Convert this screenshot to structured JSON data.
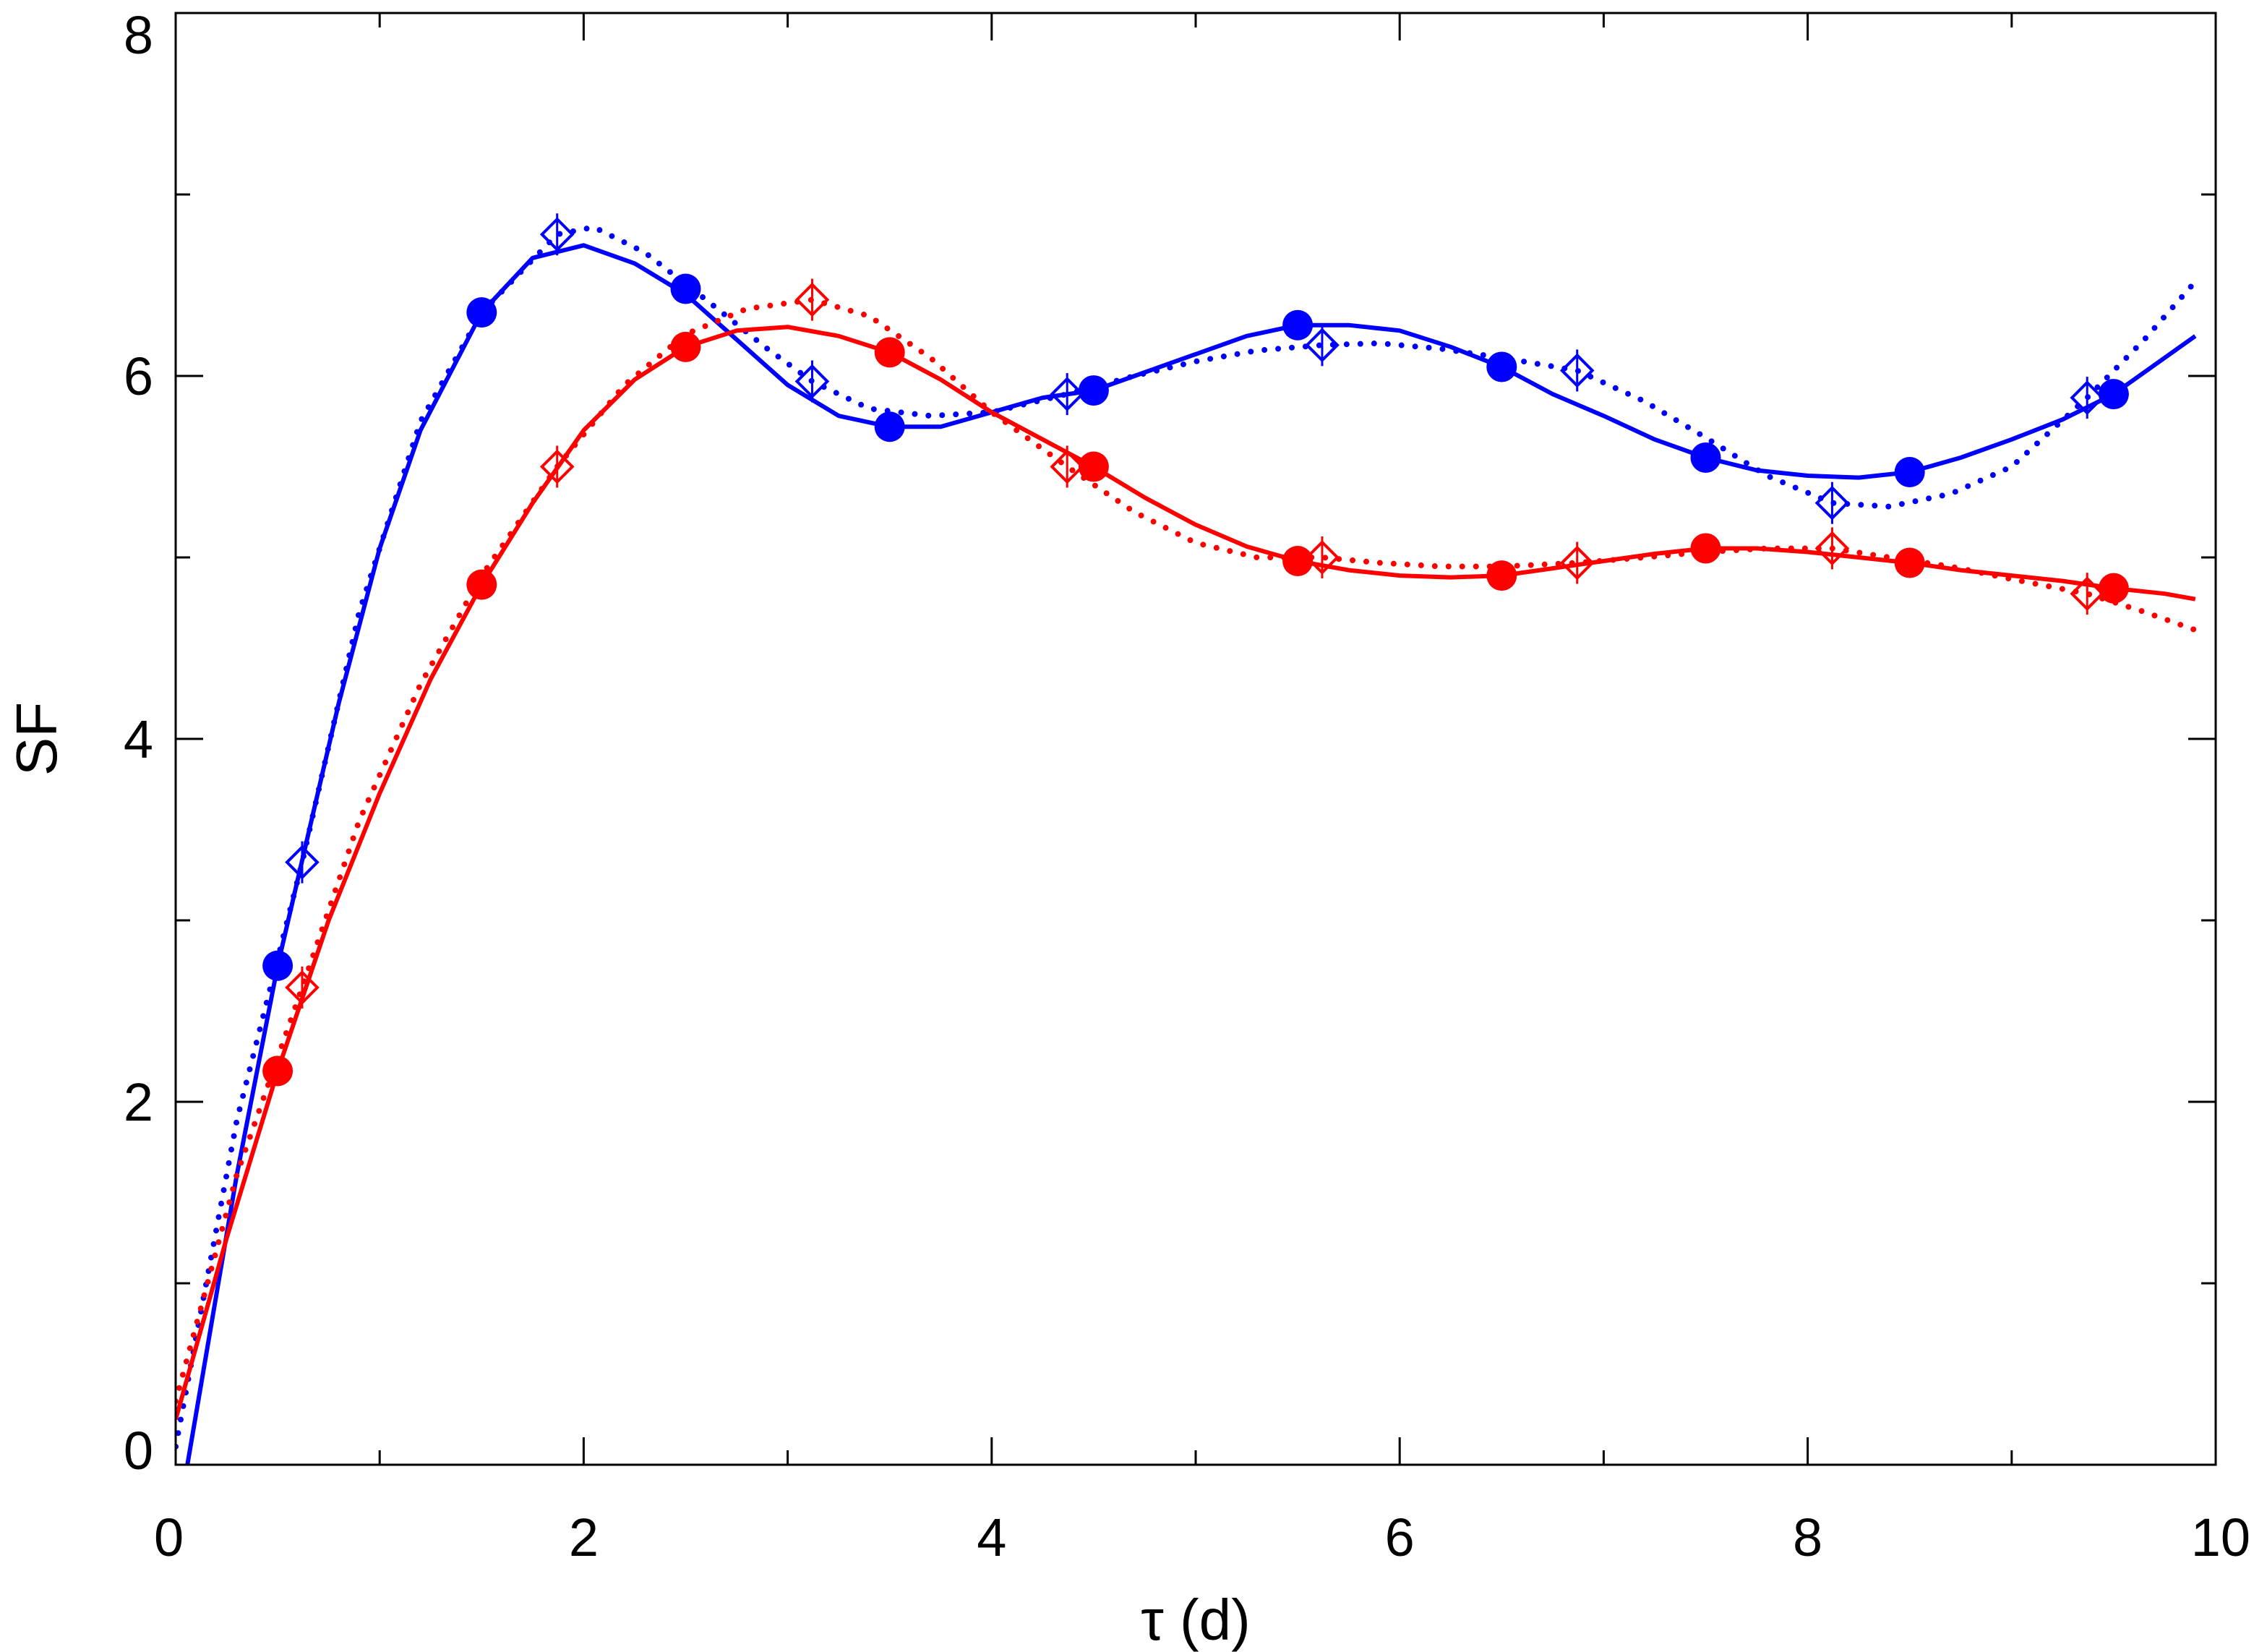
{
  "chart_data": {
    "type": "line",
    "title": "",
    "xlabel": "τ (d)",
    "ylabel": "SF",
    "xlim": [
      0,
      10
    ],
    "ylim": [
      0,
      8
    ],
    "x_ticks": [
      0,
      2,
      4,
      6,
      8,
      10
    ],
    "y_ticks": [
      0,
      2,
      4,
      6,
      8
    ],
    "x_minor_step": 1,
    "y_minor_step": 1,
    "grid": false,
    "legend": "none",
    "series": [
      {
        "color": "#0000ff",
        "marker": "filled-circle",
        "x": [
          0.5,
          1.5,
          2.5,
          3.5,
          4.5,
          5.5,
          6.5,
          7.5,
          8.5,
          9.5
        ],
        "y": [
          2.75,
          6.35,
          6.48,
          5.72,
          5.92,
          6.28,
          6.05,
          5.55,
          5.47,
          5.9
        ]
      },
      {
        "color": "#0000ff",
        "marker": "open-diamond",
        "x": [
          0.62,
          1.87,
          3.12,
          4.37,
          5.62,
          6.87,
          8.12,
          9.37
        ],
        "y": [
          3.32,
          6.78,
          5.97,
          5.9,
          6.17,
          6.03,
          5.3,
          5.88
        ]
      },
      {
        "color": "#ff0000",
        "marker": "filled-circle",
        "x": [
          0.5,
          1.5,
          2.5,
          3.5,
          4.5,
          5.5,
          6.5,
          7.5,
          8.5,
          9.5
        ],
        "y": [
          2.17,
          4.85,
          6.16,
          6.13,
          5.5,
          4.98,
          4.9,
          5.05,
          4.97,
          4.83
        ]
      },
      {
        "color": "#ff0000",
        "marker": "open-diamond",
        "x": [
          0.62,
          1.87,
          3.12,
          4.37,
          5.62,
          6.87,
          8.12,
          9.37
        ],
        "y": [
          2.63,
          5.5,
          6.42,
          5.5,
          5.0,
          4.97,
          5.05,
          4.8
        ]
      },
      {
        "color": "#0000ff",
        "style": "solid",
        "x": [
          0.05,
          0.3,
          0.5,
          0.8,
          1.0,
          1.2,
          1.5,
          1.75,
          2.0,
          2.25,
          2.5,
          2.75,
          3.0,
          3.25,
          3.5,
          3.75,
          4.0,
          4.25,
          4.5,
          4.75,
          5.0,
          5.25,
          5.5,
          5.75,
          6.0,
          6.25,
          6.5,
          6.75,
          7.0,
          7.25,
          7.5,
          7.75,
          8.0,
          8.25,
          8.5,
          8.75,
          9.0,
          9.25,
          9.5,
          9.75,
          9.9
        ],
        "y": [
          -0.05,
          1.6,
          2.75,
          4.2,
          5.05,
          5.7,
          6.35,
          6.65,
          6.72,
          6.62,
          6.45,
          6.2,
          5.95,
          5.78,
          5.72,
          5.72,
          5.8,
          5.88,
          5.92,
          6.02,
          6.12,
          6.22,
          6.28,
          6.28,
          6.25,
          6.16,
          6.05,
          5.9,
          5.78,
          5.65,
          5.55,
          5.48,
          5.45,
          5.44,
          5.47,
          5.55,
          5.65,
          5.76,
          5.9,
          6.1,
          6.22
        ]
      },
      {
        "color": "#0000ff",
        "style": "dotted",
        "x": [
          0.0,
          0.3,
          0.62,
          0.9,
          1.2,
          1.5,
          1.87,
          2.05,
          2.3,
          2.6,
          2.9,
          3.12,
          3.4,
          3.7,
          4.0,
          4.37,
          4.7,
          5.0,
          5.3,
          5.62,
          5.9,
          6.2,
          6.5,
          6.87,
          7.2,
          7.5,
          7.8,
          8.12,
          8.4,
          8.7,
          9.0,
          9.37,
          9.65,
          9.9
        ],
        "y": [
          0.1,
          1.9,
          3.32,
          4.7,
          5.75,
          6.35,
          6.78,
          6.82,
          6.68,
          6.42,
          6.15,
          5.97,
          5.82,
          5.78,
          5.8,
          5.9,
          6.0,
          6.08,
          6.14,
          6.17,
          6.18,
          6.15,
          6.1,
          6.03,
          5.86,
          5.66,
          5.45,
          5.3,
          5.28,
          5.35,
          5.5,
          5.88,
          6.2,
          6.52
        ]
      },
      {
        "color": "#ff0000",
        "style": "solid",
        "x": [
          0.0,
          0.25,
          0.5,
          0.75,
          1.0,
          1.25,
          1.5,
          1.75,
          2.0,
          2.25,
          2.5,
          2.75,
          3.0,
          3.25,
          3.5,
          3.75,
          4.0,
          4.25,
          4.5,
          4.75,
          5.0,
          5.25,
          5.5,
          5.75,
          6.0,
          6.25,
          6.5,
          6.75,
          7.0,
          7.25,
          7.5,
          7.75,
          8.0,
          8.25,
          8.5,
          8.75,
          9.0,
          9.25,
          9.5,
          9.75,
          9.9
        ],
        "y": [
          0.25,
          1.25,
          2.17,
          3.0,
          3.7,
          4.33,
          4.85,
          5.3,
          5.7,
          5.98,
          6.16,
          6.25,
          6.27,
          6.22,
          6.13,
          5.98,
          5.8,
          5.65,
          5.5,
          5.33,
          5.18,
          5.06,
          4.98,
          4.93,
          4.9,
          4.89,
          4.9,
          4.94,
          4.98,
          5.02,
          5.05,
          5.05,
          5.03,
          5.0,
          4.97,
          4.93,
          4.9,
          4.87,
          4.83,
          4.8,
          4.77
        ]
      },
      {
        "color": "#ff0000",
        "style": "dotted",
        "x": [
          0.0,
          0.3,
          0.62,
          0.9,
          1.2,
          1.5,
          1.87,
          2.2,
          2.5,
          2.8,
          3.12,
          3.4,
          3.7,
          4.0,
          4.37,
          4.7,
          5.0,
          5.3,
          5.62,
          5.9,
          6.2,
          6.5,
          6.87,
          7.2,
          7.5,
          7.8,
          8.12,
          8.4,
          8.7,
          9.0,
          9.37,
          9.65,
          9.9
        ],
        "y": [
          0.35,
          1.6,
          2.63,
          3.55,
          4.3,
          4.9,
          5.5,
          5.95,
          6.23,
          6.37,
          6.42,
          6.33,
          6.1,
          5.8,
          5.5,
          5.25,
          5.08,
          5.0,
          5.0,
          4.97,
          4.95,
          4.95,
          4.97,
          5.0,
          5.03,
          5.05,
          5.05,
          5.0,
          4.95,
          4.88,
          4.8,
          4.7,
          4.6
        ]
      }
    ]
  }
}
